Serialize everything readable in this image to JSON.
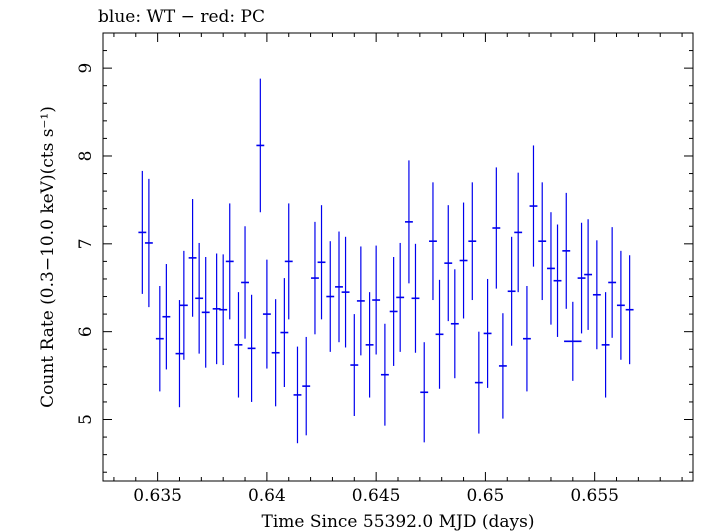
{
  "chart_data": {
    "type": "scatter",
    "title": "blue: WT − red: PC",
    "xlabel": "Time Since 55392.0 MJD (days)",
    "ylabel": "Count Rate (0.3−10.0 keV)(cts s⁻¹)",
    "xlim": [
      0.6325,
      0.6595
    ],
    "ylim": [
      4.3,
      9.4
    ],
    "xticks": [
      0.635,
      0.64,
      0.645,
      0.65,
      0.655
    ],
    "xtick_labels": [
      "0.635",
      "0.64",
      "0.645",
      "0.65",
      "0.655"
    ],
    "yticks": [
      5,
      6,
      7,
      8,
      9
    ],
    "ytick_labels": [
      "5",
      "6",
      "7",
      "8",
      "9"
    ],
    "grid": false,
    "series": [
      {
        "color": "#0000ee",
        "x": [
          0.6343,
          0.6346,
          0.6351,
          0.6354,
          0.636,
          0.6362,
          0.6366,
          0.6369,
          0.6372,
          0.6377,
          0.638,
          0.6383,
          0.6387,
          0.639,
          0.6393,
          0.6397,
          0.64,
          0.6404,
          0.6408,
          0.641,
          0.6414,
          0.6418,
          0.6422,
          0.6425,
          0.6429,
          0.6433,
          0.6436,
          0.644,
          0.6443,
          0.6447,
          0.645,
          0.6454,
          0.6458,
          0.6461,
          0.6465,
          0.6468,
          0.6472,
          0.6476,
          0.6479,
          0.6483,
          0.6486,
          0.649,
          0.6494,
          0.6497,
          0.6501,
          0.6505,
          0.6508,
          0.6512,
          0.6515,
          0.6519,
          0.6522,
          0.6526,
          0.653,
          0.6533,
          0.6537,
          0.654,
          0.6544,
          0.6547,
          0.6551,
          0.6555,
          0.6558,
          0.6562,
          0.6566
        ],
        "y": [
          7.13,
          7.01,
          5.92,
          6.17,
          5.75,
          6.3,
          6.84,
          6.38,
          6.22,
          6.26,
          6.25,
          6.8,
          5.85,
          6.56,
          5.81,
          8.12,
          6.2,
          5.76,
          5.99,
          6.8,
          5.28,
          5.38,
          6.61,
          6.79,
          6.4,
          6.51,
          6.45,
          5.62,
          6.35,
          5.85,
          6.36,
          5.51,
          6.23,
          6.39,
          7.25,
          6.38,
          5.31,
          7.03,
          5.97,
          6.78,
          6.09,
          6.81,
          7.03,
          5.42,
          5.98,
          7.18,
          5.61,
          6.46,
          7.13,
          5.92,
          7.43,
          7.03,
          6.72,
          6.58,
          6.92,
          5.89,
          6.61,
          6.65,
          6.42,
          5.85,
          6.56,
          6.3,
          6.25
        ],
        "yerr": [
          0.7,
          0.73,
          0.6,
          0.6,
          0.61,
          0.62,
          0.67,
          0.63,
          0.63,
          0.63,
          0.63,
          0.66,
          0.6,
          0.64,
          0.61,
          0.76,
          0.62,
          0.61,
          0.62,
          0.66,
          0.55,
          0.56,
          0.64,
          0.65,
          0.63,
          0.63,
          0.63,
          0.58,
          0.62,
          0.6,
          0.62,
          0.58,
          0.62,
          0.62,
          0.7,
          0.62,
          0.57,
          0.67,
          0.62,
          0.66,
          0.62,
          0.66,
          0.67,
          0.58,
          0.62,
          0.69,
          0.6,
          0.62,
          0.68,
          0.6,
          0.69,
          0.67,
          0.64,
          0.64,
          0.66,
          0.45,
          0.63,
          0.63,
          0.62,
          0.6,
          0.63,
          0.62,
          0.62
        ],
        "xerr": [
          0.00018,
          0.00018,
          0.00018,
          0.00018,
          0.00018,
          0.00018,
          0.00018,
          0.00018,
          0.00018,
          0.00018,
          0.00018,
          0.00018,
          0.00018,
          0.00018,
          0.00018,
          0.00018,
          0.00018,
          0.00018,
          0.00018,
          0.00018,
          0.00018,
          0.00018,
          0.00018,
          0.00018,
          0.00018,
          0.00018,
          0.00018,
          0.00018,
          0.00018,
          0.00018,
          0.00018,
          0.00018,
          0.00018,
          0.00018,
          0.00018,
          0.00018,
          0.00018,
          0.00018,
          0.00018,
          0.00018,
          0.00018,
          0.00018,
          0.00018,
          0.00018,
          0.00018,
          0.00018,
          0.00018,
          0.00018,
          0.00018,
          0.00018,
          0.00018,
          0.00018,
          0.00018,
          0.00018,
          0.00018,
          0.0004,
          0.00018,
          0.00018,
          0.00018,
          0.00018,
          0.00018,
          0.00018,
          0.00018
        ]
      }
    ]
  }
}
